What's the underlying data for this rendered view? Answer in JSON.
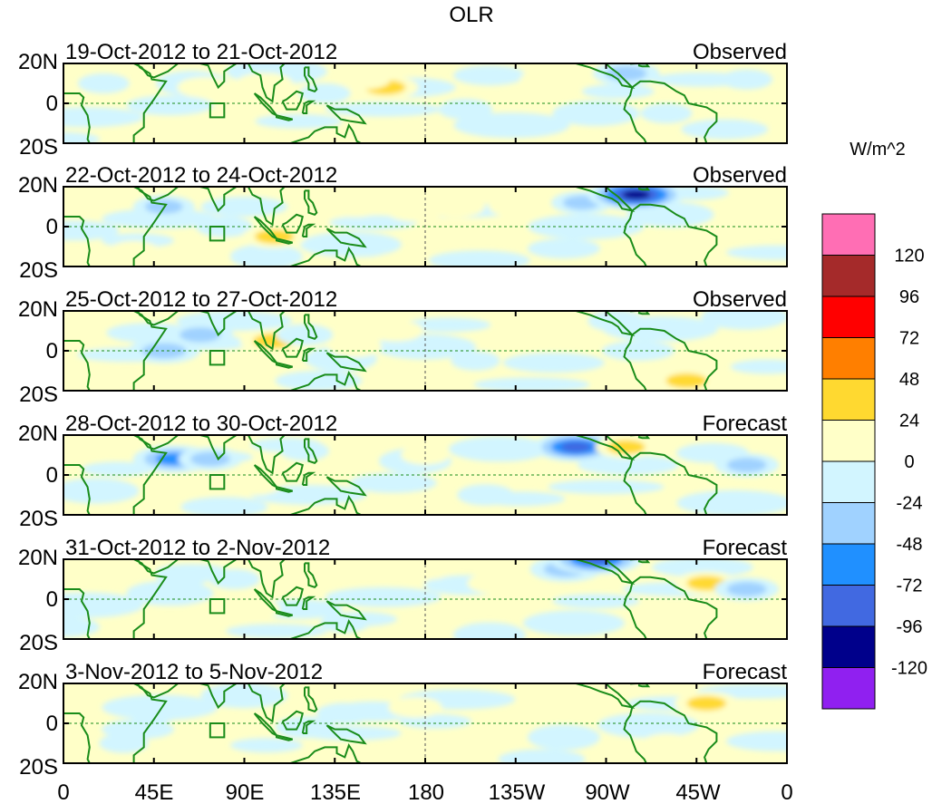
{
  "title": "OLR",
  "units": "W/m^2",
  "lat_labels": [
    "20N",
    "0",
    "20S"
  ],
  "lon_labels": [
    "0",
    "45E",
    "90E",
    "135E",
    "180",
    "135W",
    "90W",
    "45W",
    "0"
  ],
  "panels": [
    {
      "date_range": "19-Oct-2012 to 21-Oct-2012",
      "status": "Observed"
    },
    {
      "date_range": "22-Oct-2012 to 24-Oct-2012",
      "status": "Observed"
    },
    {
      "date_range": "25-Oct-2012 to 27-Oct-2012",
      "status": "Observed"
    },
    {
      "date_range": "28-Oct-2012 to 30-Oct-2012",
      "status": "Forecast"
    },
    {
      "date_range": "31-Oct-2012 to 2-Nov-2012",
      "status": "Forecast"
    },
    {
      "date_range": "3-Nov-2012 to 5-Nov-2012",
      "status": "Forecast"
    }
  ],
  "colorbar": {
    "colors": [
      "#ff6eb4",
      "#a52a2a",
      "#ff0000",
      "#ff7f00",
      "#ffd930",
      "#ffffc8",
      "#d2f5ff",
      "#a0d2ff",
      "#2090ff",
      "#4169e1",
      "#00008b",
      "#9020f0"
    ],
    "labels": [
      "120",
      "96",
      "72",
      "48",
      "24",
      "0",
      "-24",
      "-48",
      "-72",
      "-96",
      "-120"
    ]
  },
  "colors": {
    "coastline": "#1a8c1a",
    "frame": "#000000",
    "dashed_ref": "#1a8c1a",
    "base_fill": "#ffffc8"
  },
  "chart_data": {
    "type": "heatmap",
    "variable": "OLR",
    "units": "W/m^2",
    "lon_range": [
      0,
      360
    ],
    "lat_range": [
      -20,
      20
    ],
    "levels": [
      -120,
      -96,
      -72,
      -48,
      -24,
      0,
      24,
      48,
      72,
      96,
      120
    ],
    "panels": [
      {
        "label": "19-Oct-2012 to 21-Oct-2012",
        "kind": "Observed",
        "anomalies": [
          {
            "lon": 20,
            "lat": 10,
            "v": -30
          },
          {
            "lon": 70,
            "lat": 8,
            "v": 35
          },
          {
            "lon": 100,
            "lat": 10,
            "v": 40
          },
          {
            "lon": 130,
            "lat": 5,
            "v": -30
          },
          {
            "lon": 160,
            "lat": 8,
            "v": 60
          },
          {
            "lon": 150,
            "lat": 12,
            "v": 30
          },
          {
            "lon": 200,
            "lat": -3,
            "v": -35
          },
          {
            "lon": 280,
            "lat": 15,
            "v": -60
          },
          {
            "lon": 300,
            "lat": -5,
            "v": -30
          },
          {
            "lon": 340,
            "lat": 12,
            "v": -30
          },
          {
            "lon": 240,
            "lat": 12,
            "v": 30
          }
        ]
      },
      {
        "label": "22-Oct-2012 to 24-Oct-2012",
        "kind": "Observed",
        "anomalies": [
          {
            "lon": 50,
            "lat": 10,
            "v": -50
          },
          {
            "lon": 80,
            "lat": 0,
            "v": -40
          },
          {
            "lon": 105,
            "lat": -5,
            "v": 55
          },
          {
            "lon": 145,
            "lat": 10,
            "v": 40
          },
          {
            "lon": 175,
            "lat": 8,
            "v": 45
          },
          {
            "lon": 195,
            "lat": 10,
            "v": 45
          },
          {
            "lon": 225,
            "lat": 10,
            "v": 35
          },
          {
            "lon": 258,
            "lat": 12,
            "v": -50
          },
          {
            "lon": 285,
            "lat": 16,
            "v": -120
          },
          {
            "lon": 150,
            "lat": -10,
            "v": -35
          },
          {
            "lon": 35,
            "lat": -12,
            "v": 25
          }
        ]
      },
      {
        "label": "25-Oct-2012 to 27-Oct-2012",
        "kind": "Observed",
        "anomalies": [
          {
            "lon": 50,
            "lat": 0,
            "v": -70
          },
          {
            "lon": 68,
            "lat": 8,
            "v": -60
          },
          {
            "lon": 105,
            "lat": 5,
            "v": 65
          },
          {
            "lon": 120,
            "lat": 8,
            "v": -40
          },
          {
            "lon": 145,
            "lat": 2,
            "v": 35
          },
          {
            "lon": 165,
            "lat": 10,
            "v": 40
          },
          {
            "lon": 310,
            "lat": -15,
            "v": 60
          },
          {
            "lon": 275,
            "lat": 15,
            "v": -40
          },
          {
            "lon": 205,
            "lat": -5,
            "v": -25
          }
        ]
      },
      {
        "label": "28-Oct-2012 to 30-Oct-2012",
        "kind": "Forecast",
        "anomalies": [
          {
            "lon": 55,
            "lat": 8,
            "v": -90
          },
          {
            "lon": 73,
            "lat": 8,
            "v": -55
          },
          {
            "lon": 95,
            "lat": -5,
            "v": 35
          },
          {
            "lon": 120,
            "lat": 12,
            "v": -25
          },
          {
            "lon": 210,
            "lat": -10,
            "v": -40
          },
          {
            "lon": 255,
            "lat": 14,
            "v": -100
          },
          {
            "lon": 280,
            "lat": 14,
            "v": 50
          },
          {
            "lon": 340,
            "lat": 5,
            "v": -55
          },
          {
            "lon": 180,
            "lat": 10,
            "v": 25
          }
        ]
      },
      {
        "label": "31-Oct-2012 to 2-Nov-2012",
        "kind": "Forecast",
        "anomalies": [
          {
            "lon": 60,
            "lat": 12,
            "v": -40
          },
          {
            "lon": 85,
            "lat": 10,
            "v": -30
          },
          {
            "lon": 95,
            "lat": -5,
            "v": 30
          },
          {
            "lon": 180,
            "lat": 15,
            "v": 40
          },
          {
            "lon": 215,
            "lat": 8,
            "v": 40
          },
          {
            "lon": 250,
            "lat": 15,
            "v": -70
          },
          {
            "lon": 265,
            "lat": 20,
            "v": -110
          },
          {
            "lon": 320,
            "lat": 8,
            "v": 55
          },
          {
            "lon": 340,
            "lat": 5,
            "v": -55
          },
          {
            "lon": 140,
            "lat": -12,
            "v": -25
          }
        ]
      },
      {
        "label": "3-Nov-2012 to 5-Nov-2012",
        "kind": "Forecast",
        "anomalies": [
          {
            "lon": 45,
            "lat": 5,
            "v": -30
          },
          {
            "lon": 120,
            "lat": -2,
            "v": -45
          },
          {
            "lon": 140,
            "lat": 5,
            "v": -40
          },
          {
            "lon": 175,
            "lat": 8,
            "v": 35
          },
          {
            "lon": 240,
            "lat": 12,
            "v": 35
          },
          {
            "lon": 320,
            "lat": 10,
            "v": 55
          },
          {
            "lon": 300,
            "lat": -10,
            "v": 25
          },
          {
            "lon": 30,
            "lat": -10,
            "v": -25
          }
        ]
      }
    ]
  }
}
